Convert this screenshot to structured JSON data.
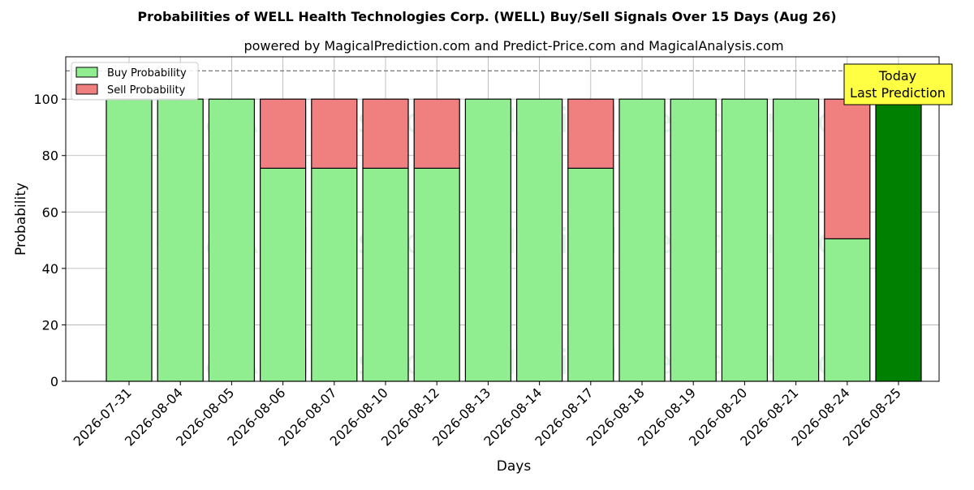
{
  "chart_data": {
    "type": "bar",
    "title": "Probabilities of WELL Health Technologies Corp. (WELL) Buy/Sell Signals Over 15 Days (Aug 26)",
    "subtitle": "powered by MagicalPrediction.com and Predict-Price.com and MagicalAnalysis.com",
    "xlabel": "Days",
    "ylabel": "Probability",
    "ylim": [
      0,
      115
    ],
    "yticks": [
      0,
      20,
      40,
      60,
      80,
      100
    ],
    "reference_line": 110,
    "grid": true,
    "legend_position": "top-left",
    "categories": [
      "2026-07-31",
      "2026-08-04",
      "2026-08-05",
      "2026-08-06",
      "2026-08-07",
      "2026-08-10",
      "2026-08-12",
      "2026-08-13",
      "2026-08-14",
      "2026-08-17",
      "2026-08-18",
      "2026-08-19",
      "2026-08-20",
      "2026-08-21",
      "2026-08-24",
      "2026-08-25"
    ],
    "series": [
      {
        "name": "Buy Probability",
        "color": "#90ee90",
        "values": [
          100,
          100,
          100,
          75.5,
          75.5,
          75.5,
          75.5,
          100,
          100,
          75.5,
          100,
          100,
          100,
          100,
          50.5,
          100
        ]
      },
      {
        "name": "Sell Probability",
        "color": "#f08080",
        "values": [
          0,
          0,
          0,
          24.5,
          24.5,
          24.5,
          24.5,
          0,
          0,
          24.5,
          0,
          0,
          0,
          0,
          49.5,
          0
        ]
      }
    ],
    "highlight": {
      "index": 15,
      "color": "#008000"
    },
    "annotation": {
      "line1": "Today",
      "line2": "Last Prediction",
      "color": "#ffff44"
    },
    "watermarks": [
      "MagicalAnalysis.com",
      "MagicalPrediction.com"
    ]
  }
}
